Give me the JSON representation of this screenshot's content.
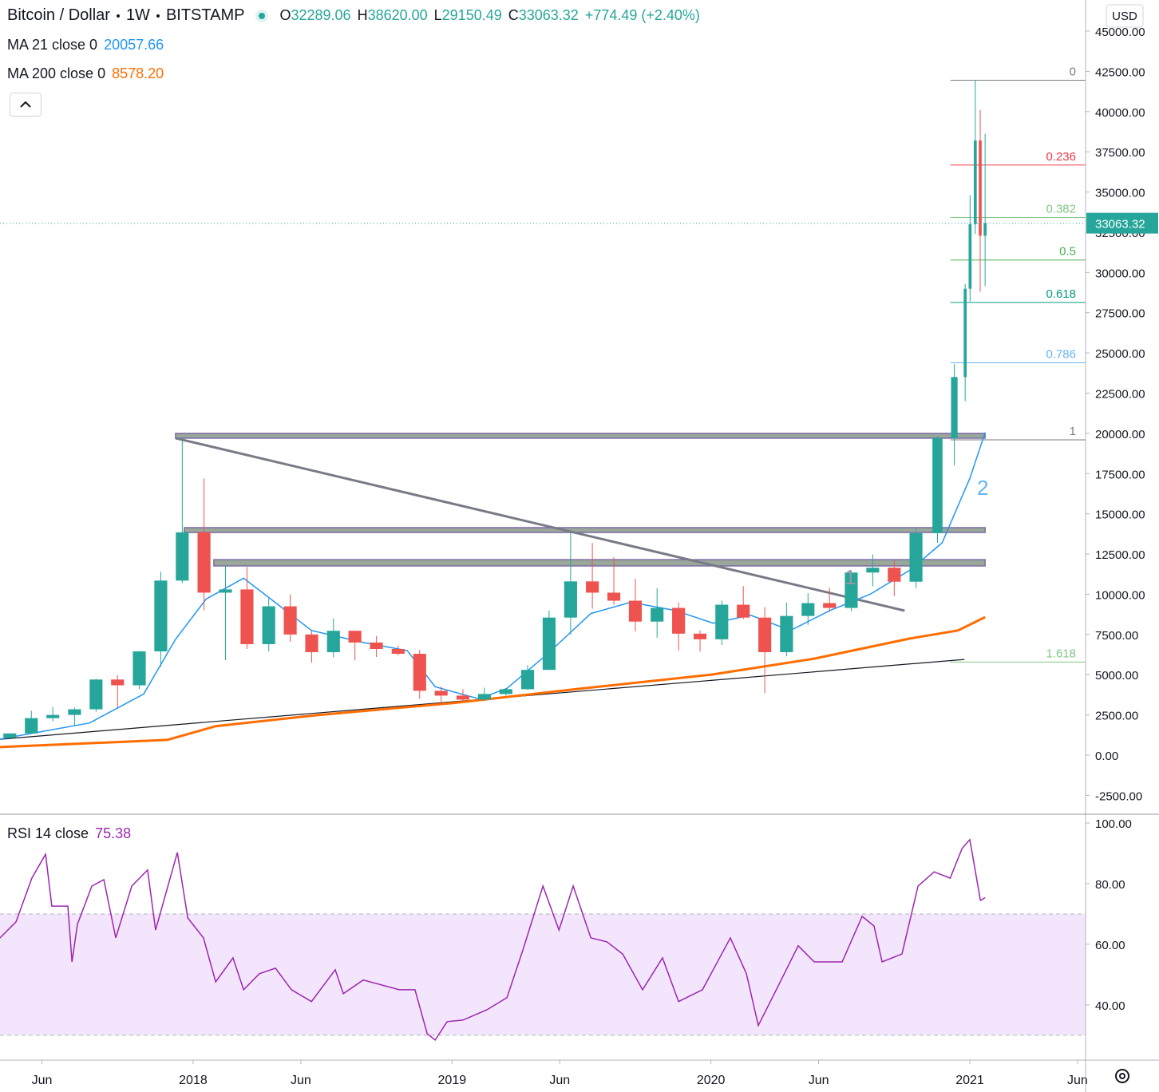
{
  "chart_data": [
    {
      "type": "candlestick",
      "title": "Bitcoin / Dollar",
      "interval": "1W",
      "exchange": "BITSTAMP",
      "ohlc_labels": [
        {
          "key": "O",
          "value": "32289.06"
        },
        {
          "key": "H",
          "value": "38620.00"
        },
        {
          "key": "L",
          "value": "29150.49"
        },
        {
          "key": "C",
          "value": "33063.32"
        }
      ],
      "change": "+774.49 (+2.40%)",
      "currency": "USD",
      "up_color": "#26a69a",
      "down_color": "#ef5350",
      "x": [
        2017.292,
        2017.375,
        2017.458,
        2017.542,
        2017.625,
        2017.708,
        2017.792,
        2017.875,
        2017.958,
        2018.042,
        2018.125,
        2018.208,
        2018.292,
        2018.375,
        2018.458,
        2018.542,
        2018.625,
        2018.708,
        2018.792,
        2018.875,
        2018.958,
        2019.042,
        2019.125,
        2019.208,
        2019.292,
        2019.375,
        2019.458,
        2019.542,
        2019.625,
        2019.708,
        2019.792,
        2019.875,
        2019.958,
        2020.042,
        2020.125,
        2020.208,
        2020.292,
        2020.375,
        2020.458,
        2020.542,
        2020.625,
        2020.708,
        2020.792,
        2020.875,
        2020.94,
        2020.982,
        2021.001,
        2021.021,
        2021.04,
        2021.059
      ],
      "open": [
        1080,
        1350,
        2300,
        2500,
        2850,
        4700,
        4340,
        6450,
        10850,
        13850,
        10100,
        10300,
        6900,
        9250,
        7500,
        6400,
        7730,
        7000,
        6600,
        6300,
        4000,
        3700,
        3450,
        3800,
        4100,
        5300,
        8550,
        10800,
        10100,
        9600,
        8300,
        9150,
        7550,
        7200,
        9350,
        8550,
        6400,
        8650,
        9450,
        9150,
        11350,
        11650,
        10780,
        13800,
        19700,
        23500,
        28990,
        33000,
        38200,
        32289.06
      ],
      "high": [
        1350,
        2760,
        3000,
        2950,
        4750,
        4980,
        6470,
        11400,
        19666,
        17200,
        11780,
        11700,
        9750,
        9990,
        7780,
        8500,
        7750,
        7400,
        6800,
        6550,
        4250,
        4100,
        4200,
        4150,
        5600,
        9000,
        13880,
        13200,
        12300,
        10950,
        10370,
        9500,
        7750,
        9600,
        10500,
        9200,
        9480,
        10070,
        10400,
        11450,
        12470,
        12080,
        14100,
        19850,
        24300,
        29300,
        34800,
        41950,
        40100,
        38620
      ],
      "low": [
        1070,
        1350,
        2100,
        1850,
        2700,
        2950,
        4100,
        5500,
        10700,
        9000,
        5900,
        6600,
        6450,
        7050,
        5750,
        6070,
        5880,
        6100,
        6200,
        3500,
        3150,
        3350,
        3350,
        3700,
        4050,
        5300,
        7500,
        9100,
        9350,
        7700,
        7300,
        6500,
        6430,
        6850,
        8450,
        3850,
        6150,
        8100,
        8900,
        8950,
        10500,
        9880,
        10400,
        13200,
        18000,
        22000,
        28200,
        32400,
        28800,
        29150.49
      ],
      "close": [
        1350,
        2300,
        2500,
        2850,
        4700,
        4340,
        6450,
        10850,
        13850,
        10100,
        10300,
        6900,
        9250,
        7500,
        6400,
        7730,
        7000,
        6600,
        6300,
        4000,
        3700,
        3450,
        3800,
        4100,
        5300,
        8550,
        10800,
        10100,
        9600,
        8300,
        9150,
        7550,
        7200,
        9350,
        8550,
        6400,
        8650,
        9450,
        9150,
        11350,
        11650,
        10780,
        13800,
        19700,
        23500,
        28990,
        33000,
        38200,
        32289.06,
        33063.32
      ],
      "ma": [
        {
          "name": "MA 21 close 0",
          "value_label": "20057.66",
          "color": "#2196f3",
          "x": [
            2017.254,
            2017.6,
            2017.809,
            2017.932,
            2018.05,
            2018.195,
            2018.3,
            2018.457,
            2018.657,
            2018.827,
            2018.935,
            2019.104,
            2019.212,
            2019.366,
            2019.536,
            2019.69,
            2019.86,
            2020.008,
            2020.153,
            2020.307,
            2020.461,
            2020.615,
            2020.769,
            2020.893,
            2021.0,
            2021.059
          ],
          "values": [
            1000,
            2000,
            3800,
            7200,
            9700,
            11000,
            9700,
            7750,
            7000,
            6500,
            4250,
            3500,
            4150,
            6250,
            8800,
            9500,
            9000,
            8200,
            8700,
            7750,
            9000,
            10000,
            11500,
            13200,
            17200,
            20057.66
          ]
        },
        {
          "name": "MA 200 close 0",
          "value_label": "8578.20",
          "color": "#ff6d00",
          "x": [
            2017.254,
            2017.9,
            2018.087,
            2018.487,
            2019.012,
            2019.505,
            2020.0,
            2020.399,
            2020.769,
            2020.954,
            2021.059
          ],
          "values": [
            500,
            950,
            1800,
            2500,
            3250,
            4150,
            5000,
            6000,
            7250,
            7750,
            8578.2
          ]
        }
      ],
      "xlim": [
        2017.254,
        2021.447
      ],
      "xticks": [
        {
          "value": 2017.416,
          "label": "Jun"
        },
        2018,
        {
          "value": 2018.416,
          "label": "Jun"
        },
        2019,
        {
          "value": 2019.416,
          "label": "Jun"
        },
        2020,
        {
          "value": 2020.416,
          "label": "Jun"
        },
        2021,
        {
          "value": 2021.416,
          "label": "Jun"
        }
      ],
      "ylim": [
        -3671,
        46935
      ],
      "yticks": [
        {
          "value": 45000,
          "label": "45000.00"
        },
        {
          "value": 42500,
          "label": "42500.00"
        },
        {
          "value": 40000,
          "label": "40000.00"
        },
        {
          "value": 37500,
          "label": "37500.00"
        },
        {
          "value": 35000,
          "label": "35000.00"
        },
        {
          "value": 32500,
          "label": "32500.00"
        },
        {
          "value": 30000,
          "label": "30000.00"
        },
        {
          "value": 27500,
          "label": "27500.00"
        },
        {
          "value": 25000,
          "label": "25000.00"
        },
        {
          "value": 22500,
          "label": "22500.00"
        },
        {
          "value": 20000,
          "label": "20000.00"
        },
        {
          "value": 17500,
          "label": "17500.00"
        },
        {
          "value": 15000,
          "label": "15000.00"
        },
        {
          "value": 12500,
          "label": "12500.00"
        },
        {
          "value": 10000,
          "label": "10000.00"
        },
        {
          "value": 7500,
          "label": "7500.00"
        },
        {
          "value": 5000,
          "label": "5000.00"
        },
        {
          "value": 2500,
          "label": "2500.00"
        },
        {
          "value": 0,
          "label": "0.00"
        },
        {
          "value": -2500,
          "label": "-2500.00"
        }
      ],
      "fib": {
        "x0": 2020.925,
        "price_0": 41950,
        "price_1": 19600,
        "levels": [
          {
            "value": 0,
            "color": "#787b86"
          },
          {
            "value": 0.236,
            "color": "#f23645"
          },
          {
            "value": 0.382,
            "color": "#81c784"
          },
          {
            "value": 0.5,
            "color": "#4caf50"
          },
          {
            "value": 0.618,
            "color": "#089981"
          },
          {
            "value": 0.786,
            "color": "#64b5f6"
          },
          {
            "value": 1,
            "color": "#787b86"
          },
          {
            "value": 1.618,
            "color": "#81c784"
          }
        ]
      },
      "zone_color": "#9aa89a",
      "zones": [
        {
          "x0": 2017.932,
          "x1": 2021.059,
          "low": 19700,
          "high": 20000
        },
        {
          "x0": 2017.966,
          "x1": 2021.059,
          "low": 13840,
          "high": 14140
        },
        {
          "x0": 2018.08,
          "x1": 2021.059,
          "low": 11760,
          "high": 12150
        }
      ],
      "trendlines": [
        {
          "x": [
            2017.932,
            2020.748
          ],
          "values": [
            19700,
            8980
          ],
          "color": "#787b86"
        },
        {
          "x": [
            2017.254,
            2020.979
          ],
          "values": [
            990,
            5950
          ],
          "color": "#131722"
        }
      ],
      "annotations": [
        {
          "text": "1",
          "color": "#9598a1"
        },
        {
          "text": "2",
          "color": "#64b5f6"
        }
      ]
    },
    {
      "type": "line",
      "name": "RSI 14 close",
      "color": "#9c27b0",
      "band": [
        30,
        70
      ],
      "band_color": "#f3e5fb",
      "x": [
        2017.254,
        2017.316,
        2017.377,
        2017.43,
        2017.454,
        2017.516,
        2017.532,
        2017.553,
        2017.609,
        2017.655,
        2017.701,
        2017.763,
        2017.824,
        2017.855,
        2017.939,
        2017.979,
        2018.04,
        2018.087,
        2018.154,
        2018.195,
        2018.256,
        2018.318,
        2018.38,
        2018.457,
        2018.549,
        2018.58,
        2018.657,
        2018.796,
        2018.857,
        2018.904,
        2018.935,
        2018.981,
        2019.042,
        2019.135,
        2019.212,
        2019.274,
        2019.351,
        2019.413,
        2019.468,
        2019.536,
        2019.598,
        2019.659,
        2019.736,
        2019.813,
        2019.875,
        2019.967,
        2020.075,
        2020.137,
        2020.183,
        2020.245,
        2020.337,
        2020.399,
        2020.507,
        2020.584,
        2020.63,
        2020.661,
        2020.738,
        2020.8,
        2020.862,
        2020.924,
        2020.97,
        2021.0,
        2021.041,
        2021.059
      ],
      "values": [
        62.1,
        67.4,
        81.8,
        89.7,
        72.6,
        72.6,
        54.2,
        66.6,
        79.2,
        81.3,
        62.1,
        79.2,
        84.5,
        64.7,
        90.3,
        68.7,
        62.1,
        47.6,
        55.5,
        45,
        50.3,
        52.1,
        45,
        41.1,
        51.6,
        43.7,
        48.2,
        45,
        45,
        30.5,
        28.4,
        34.5,
        35,
        38.4,
        42.4,
        58.2,
        79.2,
        64.7,
        79.2,
        62.1,
        60.8,
        56.8,
        45,
        55.5,
        41.1,
        45,
        62.1,
        50.3,
        33.2,
        43.7,
        59.5,
        54.2,
        54.2,
        69.2,
        66,
        54.2,
        56.8,
        79.2,
        83.9,
        81.8,
        91.6,
        94.5,
        74.5,
        75.38
      ],
      "ylim": [
        21.8,
        102.9
      ],
      "yticks": [
        {
          "value": 100,
          "label": "100.00"
        },
        {
          "value": 80,
          "label": "80.00"
        },
        {
          "value": 60,
          "label": "60.00"
        },
        {
          "value": 40,
          "label": "40.00"
        }
      ]
    }
  ]
}
